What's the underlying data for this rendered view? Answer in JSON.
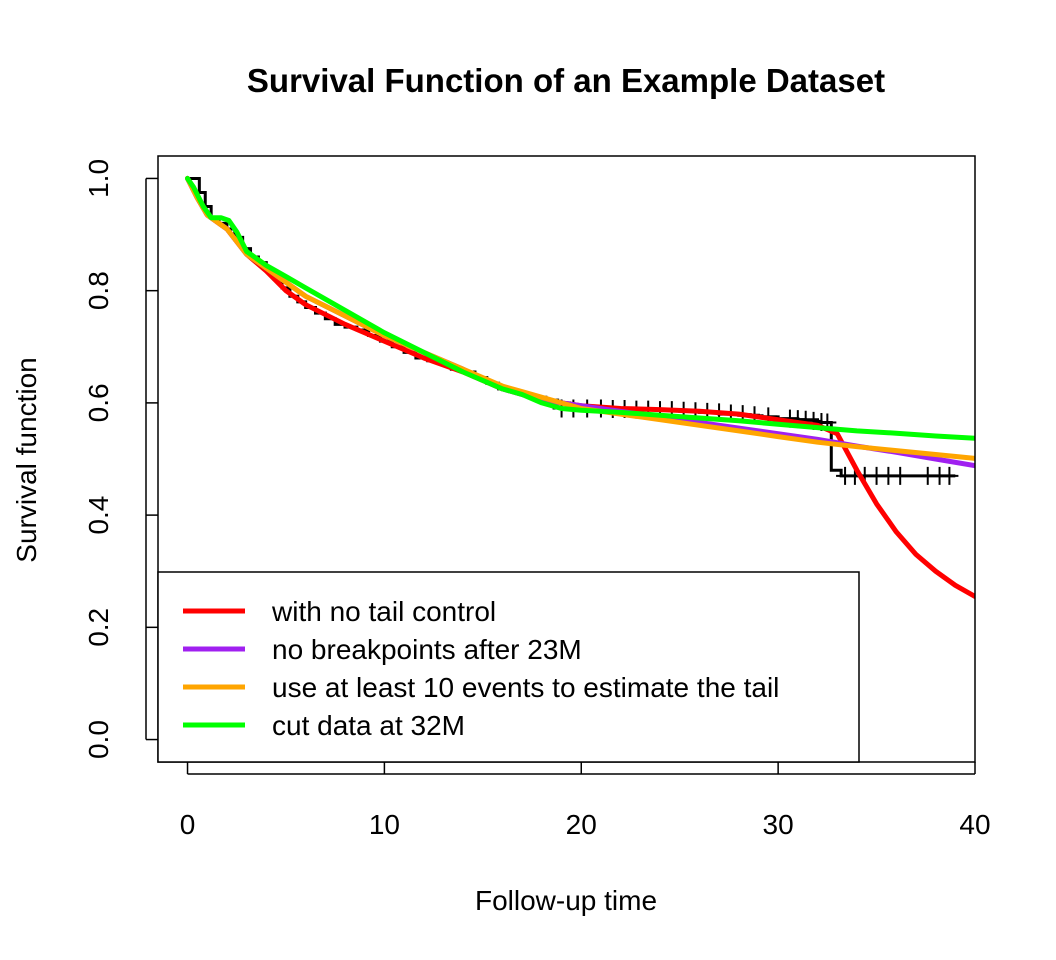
{
  "chart_data": {
    "type": "line",
    "title": "Survival Function of an Example Dataset",
    "xlabel": "Follow-up time",
    "ylabel": "Survival function",
    "xlim": [
      -1.5,
      40
    ],
    "ylim": [
      -0.04,
      1.04
    ],
    "xticks": [
      "0",
      "10",
      "20",
      "30",
      "40"
    ],
    "yticks": [
      "0.0",
      "0.2",
      "0.4",
      "0.6",
      "0.8",
      "1.0"
    ],
    "legend": {
      "position": "bottom-left",
      "entries": [
        {
          "label": "with no tail control",
          "color": "#ff0000"
        },
        {
          "label": "no breakpoints after 23M",
          "color": "#a020f0"
        },
        {
          "label": "use at least 10 events to estimate the tail",
          "color": "#ffa500"
        },
        {
          "label": "cut data at 32M",
          "color": "#00ff00"
        }
      ]
    },
    "km_step": {
      "color": "#000000",
      "x": [
        0,
        0.6,
        0.9,
        1.2,
        1.6,
        2.0,
        2.4,
        2.8,
        3.2,
        3.6,
        4.0,
        4.4,
        4.8,
        5.2,
        5.6,
        6.0,
        6.5,
        7.0,
        7.5,
        8.0,
        8.6,
        9.2,
        9.8,
        10.4,
        11.0,
        11.6,
        12.2,
        12.8,
        13.4,
        14.0,
        14.6,
        15.2,
        15.8,
        16.4,
        17.0,
        17.6,
        18.2,
        18.8,
        19.4,
        20.0,
        21.0,
        22.0,
        23.0,
        24.0,
        25.0,
        26.0,
        27.0,
        28.0,
        29.0,
        30.0,
        31.0,
        32.0,
        32.7,
        33.2,
        39.0
      ],
      "y": [
        1.0,
        0.975,
        0.95,
        0.93,
        0.92,
        0.91,
        0.895,
        0.875,
        0.86,
        0.85,
        0.835,
        0.82,
        0.805,
        0.79,
        0.78,
        0.77,
        0.76,
        0.75,
        0.74,
        0.735,
        0.73,
        0.72,
        0.71,
        0.7,
        0.69,
        0.68,
        0.675,
        0.67,
        0.66,
        0.655,
        0.645,
        0.635,
        0.625,
        0.62,
        0.615,
        0.61,
        0.605,
        0.6,
        0.595,
        0.59,
        0.59,
        0.59,
        0.588,
        0.587,
        0.585,
        0.583,
        0.58,
        0.578,
        0.575,
        0.572,
        0.57,
        0.565,
        0.48,
        0.47,
        0.47
      ],
      "censored_x": [
        19.0,
        19.6,
        20.3,
        21.0,
        21.6,
        22.2,
        22.8,
        23.4,
        24.0,
        24.6,
        25.2,
        25.8,
        26.4,
        27.0,
        27.6,
        28.2,
        28.8,
        29.5,
        30.6,
        31.0,
        31.4,
        31.8,
        32.2,
        32.5,
        33.4,
        33.9,
        34.4,
        35.0,
        35.6,
        36.2,
        37.6,
        38.2,
        38.7
      ],
      "censored_y": [
        0.59,
        0.59,
        0.59,
        0.59,
        0.589,
        0.589,
        0.588,
        0.588,
        0.587,
        0.587,
        0.586,
        0.585,
        0.584,
        0.583,
        0.581,
        0.58,
        0.578,
        0.576,
        0.572,
        0.571,
        0.57,
        0.568,
        0.566,
        0.565,
        0.47,
        0.47,
        0.47,
        0.47,
        0.47,
        0.47,
        0.47,
        0.47,
        0.47
      ]
    },
    "series": [
      {
        "name": "with no tail control",
        "color": "#ff0000",
        "x": [
          0,
          0.5,
          1,
          2,
          3,
          4,
          5,
          6,
          8,
          10,
          12,
          14,
          16,
          17,
          18,
          20,
          22,
          24,
          26,
          28,
          30,
          32,
          33,
          34,
          35,
          36,
          37,
          38,
          39,
          40
        ],
        "y": [
          1.0,
          0.965,
          0.935,
          0.91,
          0.865,
          0.835,
          0.8,
          0.775,
          0.74,
          0.71,
          0.68,
          0.655,
          0.625,
          0.615,
          0.605,
          0.595,
          0.59,
          0.588,
          0.585,
          0.58,
          0.57,
          0.56,
          0.545,
          0.48,
          0.42,
          0.37,
          0.33,
          0.3,
          0.275,
          0.255
        ]
      },
      {
        "name": "no breakpoints after 23M",
        "color": "#a020f0",
        "x": [
          0,
          0.5,
          1,
          2,
          3,
          4,
          5,
          6,
          8,
          10,
          12,
          14,
          16,
          17,
          18,
          20,
          22,
          24,
          26,
          28,
          30,
          32,
          34,
          36,
          38,
          40
        ],
        "y": [
          1.0,
          0.965,
          0.935,
          0.91,
          0.865,
          0.84,
          0.815,
          0.79,
          0.755,
          0.72,
          0.69,
          0.66,
          0.625,
          0.615,
          0.605,
          0.595,
          0.585,
          0.575,
          0.565,
          0.555,
          0.545,
          0.535,
          0.523,
          0.512,
          0.5,
          0.488
        ]
      },
      {
        "name": "use at least 10 events to estimate the tail",
        "color": "#ffa500",
        "x": [
          0,
          0.5,
          1,
          2,
          3,
          4,
          5,
          6,
          8,
          10,
          12,
          14,
          16,
          17,
          18,
          20,
          22,
          24,
          26,
          28,
          30,
          32,
          34,
          36,
          38,
          40
        ],
        "y": [
          1.0,
          0.965,
          0.935,
          0.91,
          0.865,
          0.84,
          0.815,
          0.79,
          0.755,
          0.72,
          0.69,
          0.66,
          0.63,
          0.62,
          0.61,
          0.59,
          0.58,
          0.57,
          0.56,
          0.55,
          0.54,
          0.53,
          0.522,
          0.515,
          0.508,
          0.501
        ]
      },
      {
        "name": "cut data at 32M",
        "color": "#00ff00",
        "x": [
          0,
          0.3,
          0.8,
          1.2,
          1.7,
          2.1,
          2.5,
          3.0,
          4.0,
          5.0,
          6.0,
          8.0,
          10.0,
          12.0,
          14.0,
          16.0,
          17.0,
          18.0,
          19.0,
          20.0,
          22.0,
          24.0,
          26.0,
          28.0,
          30.0,
          32.0,
          34.0,
          36.0,
          38.0,
          40.0
        ],
        "y": [
          1.0,
          0.985,
          0.95,
          0.93,
          0.93,
          0.925,
          0.905,
          0.87,
          0.845,
          0.825,
          0.805,
          0.765,
          0.725,
          0.69,
          0.655,
          0.625,
          0.615,
          0.6,
          0.59,
          0.587,
          0.583,
          0.578,
          0.573,
          0.568,
          0.562,
          0.556,
          0.55,
          0.546,
          0.541,
          0.537
        ]
      }
    ]
  }
}
